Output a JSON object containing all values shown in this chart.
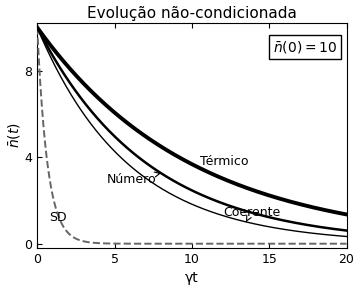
{
  "title": "Evolução não-condicionada",
  "xlabel": "γt",
  "ylabel": "$\\bar{n}(t)$",
  "n0": 10,
  "t_max": 20,
  "xlim": [
    0,
    20
  ],
  "ylim": [
    -0.2,
    10.2
  ],
  "yticks": [
    0,
    4,
    8
  ],
  "xticks": [
    0,
    5,
    10,
    15,
    20
  ],
  "annotation_box": "$\\bar{n}(0)=10$",
  "labels": {
    "termico": "Térmico",
    "numero": "Número",
    "coerente": "Coerente",
    "sd": "SD"
  },
  "line_color": "#000000",
  "dashed_color": "#666666",
  "background_color": "#ffffff",
  "title_fontsize": 11,
  "label_fontsize": 10,
  "tick_fontsize": 9,
  "annot_fontsize": 10,
  "curve_label_fontsize": 9
}
